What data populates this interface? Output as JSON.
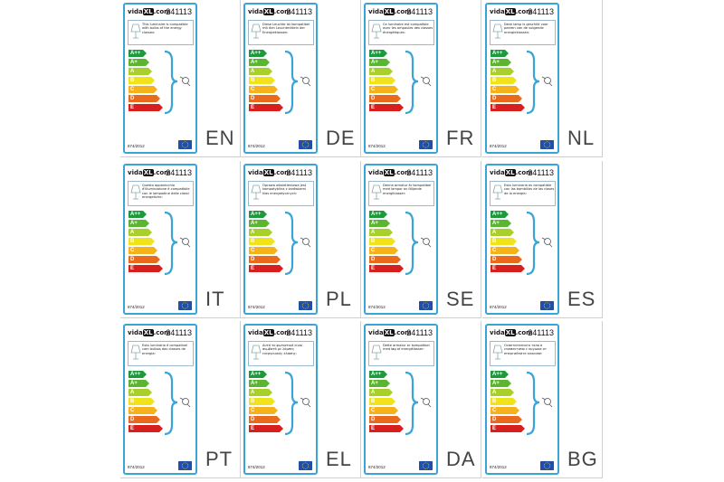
{
  "model": "241113",
  "brand": {
    "prefix": "vida",
    "mark": "XL",
    "suffix": ".com"
  },
  "regulation": "874/2012",
  "classes": [
    {
      "label": "A++",
      "color": "#1c9a3c",
      "width": 16
    },
    {
      "label": "A+",
      "color": "#5bb531",
      "width": 19
    },
    {
      "label": "A",
      "color": "#a8cf2a",
      "width": 22
    },
    {
      "label": "B",
      "color": "#f0e31b",
      "width": 25
    },
    {
      "label": "C",
      "color": "#f5b21a",
      "width": 28
    },
    {
      "label": "D",
      "color": "#ea6a1c",
      "width": 31
    },
    {
      "label": "E",
      "color": "#d7201d",
      "width": 34
    }
  ],
  "labels": [
    {
      "lang": "EN",
      "text": "This luminaire is compatible with bulbs of the energy classes:"
    },
    {
      "lang": "DE",
      "text": "Diese Leuchte ist kompatibel mit den Leuchtmitteln der Energieklassen:"
    },
    {
      "lang": "FR",
      "text": "Ce luminaire est compatible avec les ampoules des classes énergétiques:"
    },
    {
      "lang": "NL",
      "text": "Deze lamp is geschikt voor peeren van de volgende energieklassen:"
    },
    {
      "lang": "IT",
      "text": "Questo apparecchio d'illuminazione è compatibile con le lampadine delle classi energetiche:"
    },
    {
      "lang": "PL",
      "text": "Oprawa oświetleniowa jest kompatybilna z żarówkami klas energetycznych:"
    },
    {
      "lang": "SE",
      "text": "Denna armatur är kompatibel med lampor av följande energiklasser:"
    },
    {
      "lang": "ES",
      "text": "Esta luminaria es compatible con las bombillas de las clases de la energía:"
    },
    {
      "lang": "PT",
      "text": "Esta luminária é compatível com bulbos das classes de energia:"
    },
    {
      "lang": "EL",
      "text": "Αυτό το φωτιστικό είναι συμβατό με λάμπες ενεργειακής κλάσης:"
    },
    {
      "lang": "DA",
      "text": "Dette armatur er kompatibel med løg af energiklasser:"
    },
    {
      "lang": "BG",
      "text": "Осветителното тяло е съвместимо с крушки от енергийните класове:"
    }
  ]
}
